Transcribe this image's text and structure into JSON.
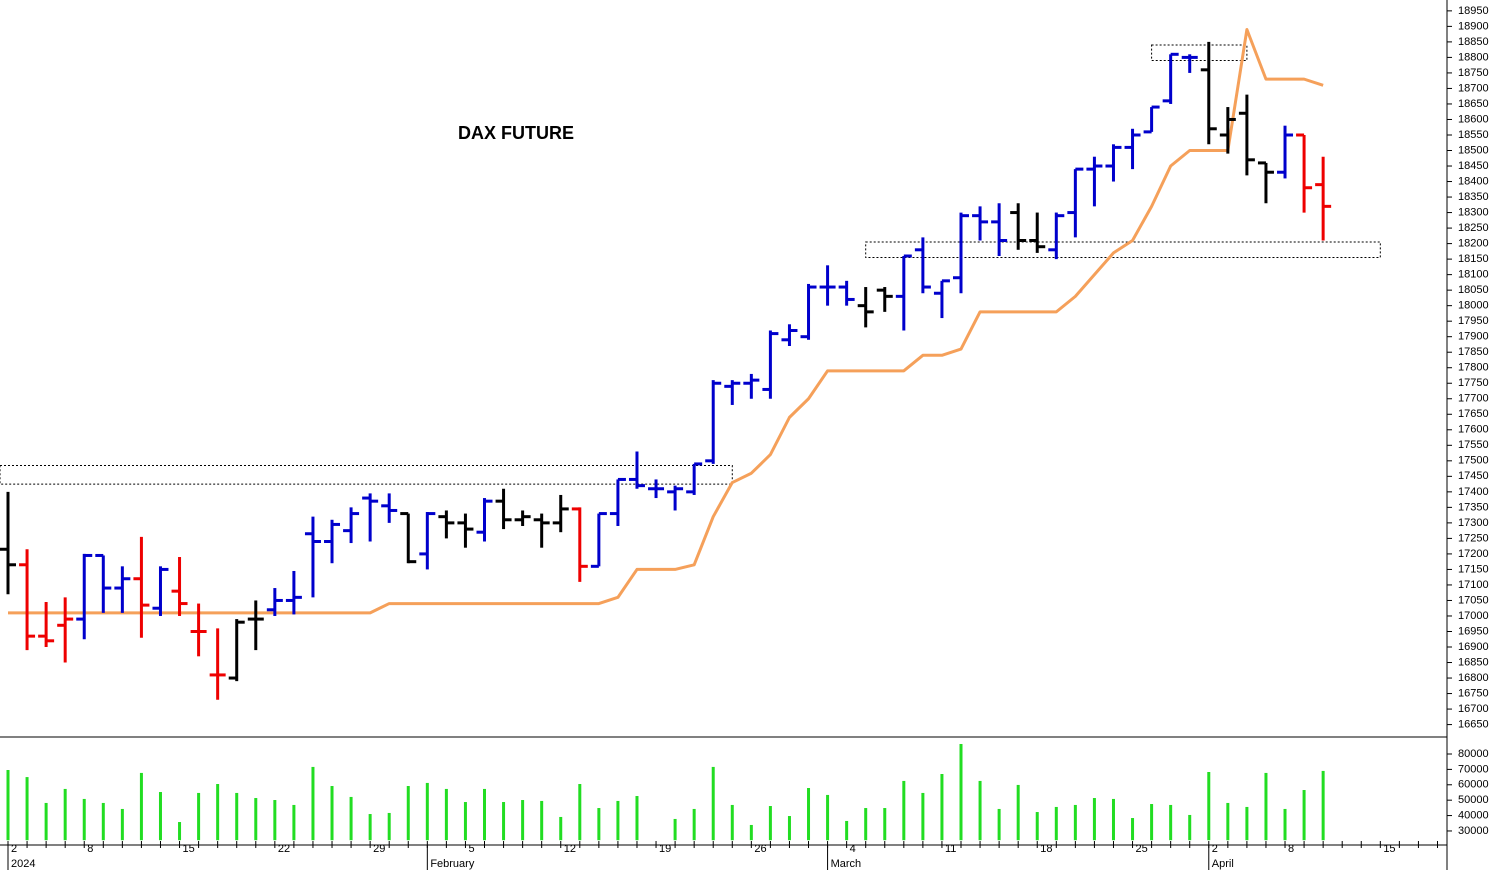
{
  "chart_data": [
    {
      "type": "ohlc",
      "title": "DAX FUTURE",
      "categories": [
        "2",
        null,
        null,
        null,
        "8",
        null,
        null,
        null,
        null,
        "15",
        null,
        null,
        null,
        null,
        "22",
        null,
        null,
        null,
        null,
        "29",
        null,
        null,
        null,
        null,
        "5",
        null,
        null,
        null,
        null,
        "12",
        null,
        null,
        null,
        null,
        "19",
        null,
        null,
        null,
        null,
        "26",
        null,
        null,
        null,
        null,
        "4",
        null,
        null,
        null,
        null,
        "11",
        null,
        null,
        null,
        null,
        "18",
        null,
        null,
        null,
        null,
        "25",
        null,
        null,
        null,
        "2",
        null,
        null,
        null,
        "8",
        null,
        null,
        null,
        null,
        "15",
        null,
        null,
        null
      ],
      "months": [
        "2024",
        null,
        null,
        null,
        null,
        null,
        null,
        null,
        null,
        null,
        null,
        null,
        null,
        null,
        null,
        null,
        null,
        null,
        null,
        null,
        null,
        null,
        "February",
        null,
        null,
        null,
        null,
        null,
        null,
        null,
        null,
        null,
        null,
        null,
        null,
        null,
        null,
        null,
        null,
        null,
        null,
        null,
        null,
        "March",
        null,
        null,
        null,
        null,
        null,
        null,
        null,
        null,
        null,
        null,
        null,
        null,
        null,
        null,
        null,
        null,
        null,
        null,
        null,
        "April",
        null,
        null,
        null,
        null,
        null,
        null,
        null,
        null,
        null,
        null,
        null,
        null
      ],
      "open": [
        17215,
        17165,
        16935,
        16970,
        16990,
        17195,
        17090,
        17120,
        17025,
        17080,
        16950,
        16810,
        16800,
        16990,
        17020,
        17050,
        17265,
        17240,
        17275,
        17380,
        17355,
        17330,
        17200,
        17320,
        17300,
        17270,
        17370,
        17310,
        17310,
        17300,
        17345,
        17160,
        17330,
        17440,
        17410,
        17400,
        17400,
        17500,
        17740,
        17750,
        17730,
        17890,
        17900,
        18060,
        18060,
        18000,
        18050,
        18030,
        18180,
        18040,
        18090,
        18290,
        18270,
        18300,
        18210,
        18180,
        18300,
        18440,
        18450,
        18510,
        18560,
        18660,
        18800,
        18760,
        18550,
        18620,
        18460,
        18430,
        18550,
        18390,
        null,
        null,
        null,
        null,
        null,
        null
      ],
      "high": [
        17400,
        17215,
        17045,
        17060,
        17200,
        17195,
        17160,
        17255,
        17160,
        17190,
        17040,
        16960,
        16990,
        17050,
        17090,
        17145,
        17320,
        17310,
        17350,
        17395,
        17395,
        17330,
        17335,
        17340,
        17330,
        17380,
        17410,
        17340,
        17330,
        17390,
        17350,
        17330,
        17440,
        17530,
        17440,
        17420,
        17490,
        17760,
        17760,
        17780,
        17920,
        17940,
        18070,
        18130,
        18080,
        18060,
        18060,
        18160,
        18220,
        18080,
        18300,
        18320,
        18330,
        18330,
        18300,
        18300,
        18440,
        18480,
        18520,
        18570,
        18640,
        18810,
        18810,
        18850,
        18640,
        18680,
        18460,
        18580,
        18550,
        18480,
        null,
        null,
        null,
        null,
        null,
        null
      ],
      "low": [
        17070,
        16890,
        16900,
        16850,
        16925,
        17010,
        17010,
        16930,
        17000,
        17000,
        16870,
        16730,
        16790,
        16890,
        17000,
        17005,
        17060,
        17170,
        17235,
        17240,
        17300,
        17170,
        17150,
        17250,
        17220,
        17240,
        17280,
        17290,
        17220,
        17270,
        17110,
        17160,
        17290,
        17410,
        17380,
        17340,
        17390,
        17490,
        17680,
        17700,
        17700,
        17870,
        17890,
        18000,
        18000,
        17930,
        17980,
        17920,
        18040,
        17960,
        18040,
        18210,
        18160,
        18180,
        18170,
        18150,
        18220,
        18320,
        18400,
        18440,
        18560,
        18650,
        18750,
        18520,
        18490,
        18420,
        18330,
        18410,
        18300,
        18210,
        null,
        null,
        null,
        null,
        null,
        null
      ],
      "close": [
        17165,
        16935,
        16920,
        16990,
        17195,
        17090,
        17120,
        17035,
        17150,
        17040,
        16950,
        16810,
        16980,
        16990,
        17050,
        17060,
        17240,
        17295,
        17330,
        17370,
        17340,
        17175,
        17330,
        17300,
        17280,
        17370,
        17310,
        17320,
        17300,
        17345,
        17160,
        17330,
        17440,
        17420,
        17410,
        17410,
        17490,
        17750,
        17750,
        17760,
        17910,
        17920,
        18060,
        18060,
        18020,
        17980,
        18030,
        18160,
        18060,
        18080,
        18290,
        18270,
        18210,
        18210,
        18190,
        18290,
        18440,
        18450,
        18510,
        18550,
        18640,
        18810,
        18800,
        18570,
        18600,
        18470,
        18430,
        18550,
        18380,
        18320,
        null,
        null,
        null,
        null,
        null,
        null
      ],
      "colors": [
        "#000000",
        "#ee0000",
        "#ee0000",
        "#ee0000",
        "#0000cc",
        "#0000cc",
        "#0000cc",
        "#ee0000",
        "#0000cc",
        "#ee0000",
        "#ee0000",
        "#ee0000",
        "#000000",
        "#000000",
        "#0000cc",
        "#0000cc",
        "#0000cc",
        "#0000cc",
        "#0000cc",
        "#0000cc",
        "#0000cc",
        "#000000",
        "#0000cc",
        "#000000",
        "#000000",
        "#0000cc",
        "#000000",
        "#000000",
        "#000000",
        "#000000",
        "#ee0000",
        "#0000cc",
        "#0000cc",
        "#0000cc",
        "#0000cc",
        "#0000cc",
        "#0000cc",
        "#0000cc",
        "#0000cc",
        "#0000cc",
        "#0000cc",
        "#0000cc",
        "#0000cc",
        "#0000cc",
        "#0000cc",
        "#000000",
        "#000000",
        "#0000cc",
        "#0000cc",
        "#0000cc",
        "#0000cc",
        "#0000cc",
        "#0000cc",
        "#000000",
        "#000000",
        "#0000cc",
        "#0000cc",
        "#0000cc",
        "#0000cc",
        "#0000cc",
        "#0000cc",
        "#0000cc",
        "#0000cc",
        "#000000",
        "#000000",
        "#000000",
        "#000000",
        "#0000cc",
        "#ee0000",
        "#ee0000",
        null,
        null,
        null,
        null,
        null,
        null
      ],
      "line": {
        "color": "#f5a05a",
        "values": [
          17010,
          17010,
          17010,
          17010,
          17010,
          17010,
          17010,
          17010,
          17010,
          17010,
          17010,
          17010,
          17010,
          17010,
          17010,
          17010,
          17010,
          17010,
          17010,
          17010,
          17040,
          17040,
          17040,
          17040,
          17040,
          17040,
          17040,
          17040,
          17040,
          17040,
          17040,
          17040,
          17060,
          17150,
          17150,
          17150,
          17165,
          17320,
          17430,
          17460,
          17520,
          17640,
          17700,
          17790,
          17790,
          17790,
          17790,
          17790,
          17840,
          17840,
          17860,
          17980,
          17980,
          17980,
          17980,
          17980,
          18030,
          18100,
          18170,
          18210,
          18320,
          18450,
          18500,
          18500,
          18500,
          18890,
          18730,
          18730,
          18730,
          18710,
          null,
          null,
          null,
          null,
          null,
          null
        ]
      },
      "zones": [
        {
          "low": 17425,
          "high": 17485,
          "start": 0,
          "end": 38
        },
        {
          "low": 18155,
          "high": 18205,
          "start": 45,
          "end": 72
        },
        {
          "low": 18790,
          "high": 18840,
          "start": 60,
          "end": 65
        }
      ],
      "ylim": [
        16610,
        18985
      ],
      "yticks": [
        16650,
        16700,
        16750,
        16800,
        16850,
        16900,
        16950,
        17000,
        17050,
        17100,
        17150,
        17200,
        17250,
        17300,
        17350,
        17400,
        17450,
        17500,
        17550,
        17600,
        17650,
        17700,
        17750,
        17800,
        17850,
        17900,
        17950,
        18000,
        18050,
        18100,
        18150,
        18200,
        18250,
        18300,
        18350,
        18400,
        18450,
        18500,
        18550,
        18600,
        18650,
        18700,
        18750,
        18800,
        18850,
        18900,
        18950
      ]
    },
    {
      "type": "bar",
      "color": "#22dd22",
      "values": [
        69600,
        65000,
        48200,
        57300,
        50800,
        48200,
        44300,
        67700,
        55300,
        35800,
        54700,
        60500,
        54700,
        51400,
        50100,
        46900,
        71600,
        59200,
        52100,
        41000,
        41700,
        59200,
        61200,
        57300,
        48800,
        57300,
        48800,
        50100,
        49500,
        39100,
        60500,
        44900,
        49500,
        52700,
        null,
        37800,
        44300,
        71600,
        46900,
        33900,
        46200,
        39700,
        57900,
        53400,
        36500,
        44900,
        44900,
        62500,
        54700,
        67000,
        86500,
        62500,
        44300,
        59900,
        42300,
        45600,
        46900,
        51400,
        50800,
        38400,
        47500,
        46900,
        40400,
        68300,
        48200,
        45600,
        67700,
        44300,
        56600,
        69000,
        null,
        null,
        null,
        null,
        null,
        null
      ],
      "ylim": [
        24000,
        90000
      ],
      "yticks": [
        30000,
        40000,
        50000,
        60000,
        70000,
        80000
      ]
    }
  ]
}
